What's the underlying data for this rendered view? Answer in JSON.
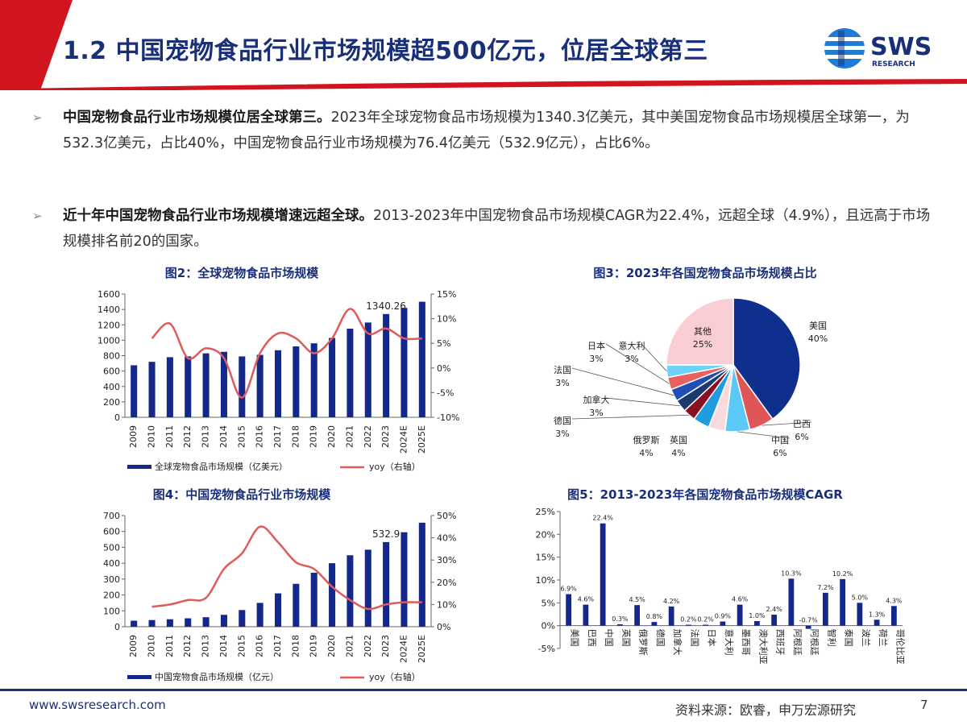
{
  "header": {
    "title": "1.2 中国宠物食品行业市场规模超500亿元，位居全球第三",
    "logo_text": "SWS",
    "logo_subtext": "RESEARCH",
    "colors": {
      "brand_red": "#d2141e",
      "brand_blue": "#1a2f7a",
      "accent_blue": "#1e7bd6"
    }
  },
  "bullets": [
    {
      "lead": "中国宠物食品行业市场规模位居全球第三。",
      "body": "2023年全球宠物食品市场规模为1340.3亿美元，其中美国宠物食品市场规模居全球第一，为532.3亿美元，占比40%，中国宠物食品行业市场规模为76.4亿美元（532.9亿元），占比6%。"
    },
    {
      "lead": "近十年中国宠物食品行业市场规模增速远超全球。",
      "body": "2013-2023年中国宠物食品市场规模CAGR为22.4%，远超全球（4.9%），且远高于市场规模排名前20的国家。"
    }
  ],
  "footer": {
    "url": "www.swsresearch.com",
    "source": "资料来源：欧睿，申万宏源研究",
    "page": "7"
  },
  "chart_data": [
    {
      "id": "fig2",
      "type": "bar+line",
      "title": "图2：全球宠物食品市场规模",
      "categories": [
        "2009",
        "2010",
        "2011",
        "2012",
        "2013",
        "2014",
        "2015",
        "2016",
        "2017",
        "2018",
        "2019",
        "2020",
        "2021",
        "2022",
        "2023",
        "2024E",
        "2025E"
      ],
      "series": [
        {
          "name": "全球宠物食品市场规模（亿美元）",
          "axis": "left",
          "type": "bar",
          "color": "#14288c",
          "values": [
            675,
            720,
            780,
            790,
            830,
            850,
            790,
            810,
            870,
            920,
            960,
            1030,
            1150,
            1230,
            1340.26,
            1420,
            1500
          ]
        },
        {
          "name": "yoy（右轴）",
          "axis": "right",
          "type": "line",
          "color": "#e05a5a",
          "values": [
            null,
            6,
            9,
            2,
            4,
            2,
            -6,
            3,
            7,
            6,
            3,
            6,
            12,
            7,
            8,
            6,
            6
          ]
        }
      ],
      "yleft": {
        "min": 0,
        "max": 1600,
        "step": 200,
        "ticks": [
          "0",
          "200",
          "400",
          "600",
          "800",
          "1000",
          "1200",
          "1400",
          "1600"
        ]
      },
      "yright": {
        "min": -10,
        "max": 15,
        "step": 5,
        "ticks": [
          "-10%",
          "-5%",
          "0%",
          "5%",
          "10%",
          "15%"
        ]
      },
      "annotation": {
        "label": "1340.26",
        "index": 14
      },
      "legend": [
        "全球宠物食品市场规模（亿美元）",
        "yoy（右轴）"
      ]
    },
    {
      "id": "fig3",
      "type": "pie",
      "title": "图3：2023年各国宠物食品市场规模占比",
      "slices": [
        {
          "label": "美国",
          "value": 40,
          "pct": "40%",
          "color": "#0f2f8f"
        },
        {
          "label": "巴西",
          "value": 6,
          "pct": "6%",
          "color": "#e05555"
        },
        {
          "label": "中国",
          "value": 6,
          "pct": "6%",
          "color": "#5bc8f5"
        },
        {
          "label": "英国",
          "value": 4,
          "pct": "4%",
          "color": "#fadadd"
        },
        {
          "label": "俄罗斯",
          "value": 4,
          "pct": "4%",
          "color": "#1f9be0"
        },
        {
          "label": "德国",
          "value": 3,
          "pct": "3%",
          "color": "#8b1020"
        },
        {
          "label": "加拿大",
          "value": 3,
          "pct": "3%",
          "color": "#1c3a6e"
        },
        {
          "label": "法国",
          "value": 3,
          "pct": "3%",
          "color": "#1f4fb5"
        },
        {
          "label": "日本",
          "value": 3,
          "pct": "3%",
          "color": "#e86060"
        },
        {
          "label": "意大利",
          "value": 3,
          "pct": "3%",
          "color": "#6dd2f7"
        },
        {
          "label": "其他",
          "value": 25,
          "pct": "25%",
          "color": "#f8cdd3"
        }
      ]
    },
    {
      "id": "fig4",
      "type": "bar+line",
      "title": "图4：中国宠物食品行业市场规模",
      "categories": [
        "2009",
        "2010",
        "2011",
        "2012",
        "2013",
        "2014",
        "2015",
        "2016",
        "2017",
        "2018",
        "2019",
        "2020",
        "2021",
        "2022",
        "2023",
        "2024E",
        "2025E"
      ],
      "series": [
        {
          "name": "中国宠物食品市场规模（亿元）",
          "axis": "left",
          "type": "bar",
          "color": "#14288c",
          "values": [
            38,
            42,
            47,
            53,
            60,
            75,
            105,
            150,
            210,
            270,
            340,
            400,
            450,
            485,
            532.9,
            595,
            655
          ]
        },
        {
          "name": "yoy（右轴）",
          "axis": "right",
          "type": "line",
          "color": "#e05a5a",
          "values": [
            null,
            9,
            10,
            12,
            13,
            26,
            33,
            45,
            38,
            29,
            26,
            18,
            12,
            8,
            10,
            11,
            11
          ]
        }
      ],
      "yleft": {
        "min": 0,
        "max": 700,
        "step": 100,
        "ticks": [
          "0",
          "100",
          "200",
          "300",
          "400",
          "500",
          "600",
          "700"
        ]
      },
      "yright": {
        "min": 0,
        "max": 50,
        "step": 10,
        "ticks": [
          "0%",
          "10%",
          "20%",
          "30%",
          "40%",
          "50%"
        ]
      },
      "annotation": {
        "label": "532.9",
        "index": 14
      },
      "legend": [
        "中国宠物食品市场规模（亿元）",
        "yoy（右轴）"
      ]
    },
    {
      "id": "fig5",
      "type": "bar",
      "title": "图5：2013-2023年各国宠物食品市场规模CAGR",
      "categories": [
        "美国",
        "巴西",
        "中国",
        "英国",
        "俄罗斯",
        "德国",
        "加拿大",
        "法国",
        "日本",
        "意大利",
        "墨西哥",
        "澳大利亚",
        "西班牙",
        "阿根廷",
        "阿根廷",
        "智利",
        "泰国",
        "波兰",
        "荷兰",
        "哥伦比亚"
      ],
      "values": [
        6.9,
        4.6,
        22.4,
        0.3,
        4.5,
        0.8,
        4.2,
        0.2,
        0.2,
        0.9,
        4.6,
        1.0,
        2.4,
        10.3,
        -0.7,
        7.2,
        10.2,
        5.0,
        1.3,
        4.3
      ],
      "value_labels": [
        "6.9%",
        "4.6%",
        "22.4%",
        "0.3%",
        "4.5%",
        "0.8%",
        "4.2%",
        "0.2%",
        "0.2%",
        "0.9%",
        "4.6%",
        "1.0%",
        "2.4%",
        "10.3%",
        "-0.7%",
        "7.2%",
        "10.2%",
        "5.0%",
        "1.3%",
        "4.3%"
      ],
      "color": "#14288c",
      "yaxis": {
        "min": -5,
        "max": 25,
        "step": 5,
        "ticks": [
          "-5%",
          "0%",
          "5%",
          "10%",
          "15%",
          "20%",
          "25%"
        ]
      }
    }
  ]
}
